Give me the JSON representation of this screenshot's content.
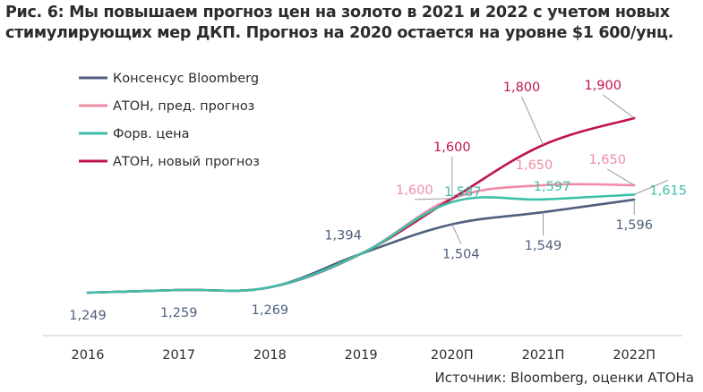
{
  "title": "Рис. 6: Мы повышаем прогноз цен на золото в 2021 и 2022 с учетом новых стимулирующих мер ДКП. Прогноз на 2020 остается на уровне $1 600/унц.",
  "source": "Источник: Bloomberg, оценки АТОНа",
  "chart_data": {
    "type": "line",
    "title": "Рис. 6: Мы повышаем прогноз цен на золото в 2021 и 2022 с учетом новых стимулирующих мер ДКП. Прогноз на 2020 остается на уровне $1 600/унц.",
    "xlabel": "",
    "ylabel": "",
    "categories": [
      "2016",
      "2017",
      "2018",
      "2019",
      "2020П",
      "2021П",
      "2022П"
    ],
    "ylim": [
      1150,
      1950
    ],
    "grid": false,
    "legend_position": "top-left",
    "series": [
      {
        "name": "Консенсус Bloomberg",
        "color": "#4f5f7e",
        "values": [
          1249,
          1259,
          1269,
          1394,
          1504,
          1549,
          1596
        ],
        "labels": [
          "1,249",
          "1,259",
          "1,269",
          "1,394",
          "1,504",
          "1,549",
          "1,596"
        ]
      },
      {
        "name": "АТОН, пред. прогноз",
        "color": "#f08ca6",
        "values": [
          1249,
          1259,
          1269,
          1394,
          1600,
          1650,
          1650
        ],
        "labels": [
          "",
          "",
          "",
          "",
          "1,600",
          "1,650",
          "1,650"
        ]
      },
      {
        "name": "Форв. цена",
        "color": "#3dbfa9",
        "values": [
          1249,
          1259,
          1269,
          1394,
          1587,
          1597,
          1615
        ],
        "labels": [
          "",
          "",
          "",
          "",
          "1,587",
          "1,597",
          "1,615"
        ]
      },
      {
        "name": "АТОН, новый прогноз",
        "color": "#c0144a",
        "values": [
          1249,
          1259,
          1269,
          1394,
          1600,
          1800,
          1900
        ],
        "labels": [
          "",
          "",
          "",
          "",
          "1,600",
          "1,800",
          "1,900"
        ]
      }
    ]
  }
}
